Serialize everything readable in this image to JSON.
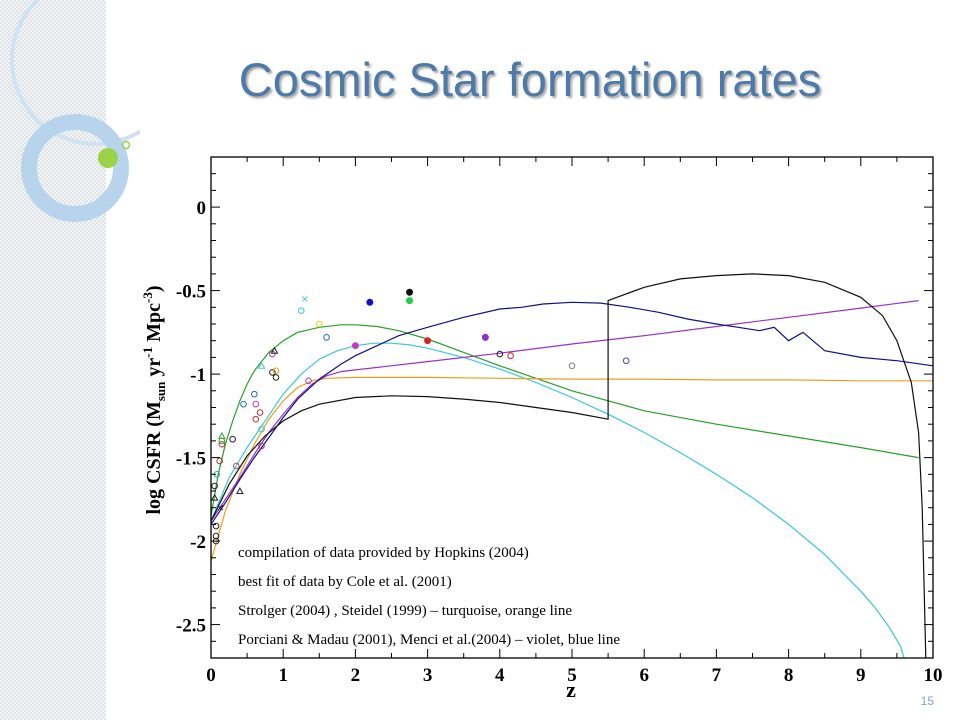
{
  "title": "Cosmic Star formation rates",
  "page_number": "15",
  "colors": {
    "title": "#4d7aa8",
    "deco_ring": "#b8d4ec",
    "deco_dot": "#9ad24a"
  },
  "chart_data": {
    "type": "line",
    "xlabel": "z",
    "ylabel": "log CSFR (M_sun yr^-1 Mpc^-3)",
    "xlim": [
      0,
      10
    ],
    "ylim": [
      -2.7,
      0.3
    ],
    "x_ticks": [
      "0",
      "1",
      "2",
      "3",
      "4",
      "5",
      "6",
      "7",
      "8",
      "9",
      "10"
    ],
    "y_ticks": [
      "0",
      "-0.5",
      "-1",
      "-1.5",
      "-2",
      "-2.5"
    ],
    "grid": false,
    "legend_lines": [
      "compilation of data provided by Hopkins (2004)",
      "best fit of data by Cole et al. (2001)",
      "Strolger (2004) , Steidel (1999) – turquoise, orange line",
      "Porciani & Madau (2001), Menci et al.(2004) – violet, blue line"
    ],
    "series": [
      {
        "color": "#28a028",
        "style": "line",
        "x": [
          0.0,
          0.1,
          0.2,
          0.3,
          0.4,
          0.5,
          0.6,
          0.8,
          1.0,
          1.2,
          1.5,
          1.8,
          2.0,
          2.3,
          2.6,
          3.0,
          3.5,
          4.0,
          5.0,
          6.0,
          7.0,
          8.0,
          9.0,
          9.8
        ],
        "y": [
          -1.85,
          -1.6,
          -1.42,
          -1.28,
          -1.16,
          -1.06,
          -0.98,
          -0.87,
          -0.8,
          -0.75,
          -0.72,
          -0.705,
          -0.705,
          -0.715,
          -0.74,
          -0.79,
          -0.87,
          -0.95,
          -1.1,
          -1.22,
          -1.3,
          -1.37,
          -1.44,
          -1.5
        ]
      },
      {
        "color": "#3cc8d8",
        "style": "line",
        "x": [
          0.0,
          0.25,
          0.5,
          0.75,
          1.0,
          1.25,
          1.5,
          1.75,
          2.0,
          2.25,
          2.5,
          2.75,
          3.0,
          3.5,
          4.0,
          4.5,
          5.0,
          5.5,
          6.0,
          6.5,
          7.0,
          7.5,
          8.0,
          8.5,
          9.0,
          9.2,
          9.4,
          9.55,
          9.6
        ],
        "y": [
          -1.88,
          -1.62,
          -1.44,
          -1.28,
          -1.12,
          -1.0,
          -0.91,
          -0.86,
          -0.83,
          -0.815,
          -0.815,
          -0.825,
          -0.845,
          -0.9,
          -0.97,
          -1.05,
          -1.14,
          -1.24,
          -1.35,
          -1.47,
          -1.6,
          -1.74,
          -1.9,
          -2.08,
          -2.3,
          -2.4,
          -2.52,
          -2.63,
          -2.7
        ]
      },
      {
        "color": "#e8a020",
        "style": "line",
        "x": [
          0.0,
          0.2,
          0.4,
          0.6,
          0.8,
          1.0,
          1.2,
          1.4,
          1.6,
          2.0,
          3.0,
          4.0,
          5.0,
          6.0,
          7.0,
          8.0,
          9.0,
          10.0
        ],
        "y": [
          -2.12,
          -1.82,
          -1.6,
          -1.42,
          -1.27,
          -1.16,
          -1.08,
          -1.04,
          -1.025,
          -1.02,
          -1.02,
          -1.025,
          -1.03,
          -1.03,
          -1.035,
          -1.035,
          -1.04,
          -1.04
        ]
      },
      {
        "color": "#9a30c8",
        "style": "line",
        "x": [
          0.0,
          0.2,
          0.4,
          0.6,
          0.8,
          1.0,
          1.2,
          1.4,
          1.6,
          1.8,
          2.0,
          3.0,
          4.0,
          5.0,
          6.0,
          7.0,
          8.0,
          9.0,
          9.8
        ],
        "y": [
          -1.88,
          -1.75,
          -1.62,
          -1.48,
          -1.35,
          -1.24,
          -1.14,
          -1.06,
          -1.01,
          -0.985,
          -0.975,
          -0.925,
          -0.875,
          -0.82,
          -0.77,
          -0.715,
          -0.66,
          -0.605,
          -0.56
        ]
      },
      {
        "color": "#101088",
        "style": "line",
        "x": [
          0.0,
          0.2,
          0.4,
          0.6,
          0.8,
          1.0,
          1.2,
          1.5,
          1.8,
          2.0,
          2.3,
          2.6,
          3.0,
          3.5,
          4.0,
          4.3,
          4.6,
          5.0,
          5.4,
          5.8,
          6.2,
          6.6,
          7.0,
          7.3,
          7.6,
          7.8,
          8.0,
          8.2,
          8.5,
          9.0,
          9.5,
          10.0
        ],
        "y": [
          -1.9,
          -1.77,
          -1.63,
          -1.5,
          -1.38,
          -1.26,
          -1.15,
          -1.03,
          -0.94,
          -0.89,
          -0.83,
          -0.77,
          -0.72,
          -0.66,
          -0.61,
          -0.6,
          -0.58,
          -0.57,
          -0.575,
          -0.6,
          -0.63,
          -0.67,
          -0.7,
          -0.72,
          -0.74,
          -0.72,
          -0.8,
          -0.75,
          -0.86,
          -0.9,
          -0.92,
          -0.95
        ]
      },
      {
        "color": "#101010",
        "style": "line",
        "x": [
          0.0,
          0.25,
          0.5,
          0.75,
          1.0,
          1.25,
          1.5,
          2.0,
          2.5,
          3.0,
          3.5,
          4.0,
          4.5,
          5.0,
          5.5,
          5.5,
          6.0,
          6.5,
          7.0,
          7.5,
          8.0,
          8.5,
          9.0,
          9.3,
          9.5,
          9.7,
          9.8,
          9.85,
          9.9
        ],
        "y": [
          -1.88,
          -1.66,
          -1.49,
          -1.37,
          -1.28,
          -1.22,
          -1.18,
          -1.14,
          -1.13,
          -1.135,
          -1.15,
          -1.17,
          -1.2,
          -1.23,
          -1.27,
          -0.56,
          -0.48,
          -0.43,
          -0.41,
          -0.4,
          -0.41,
          -0.45,
          -0.54,
          -0.65,
          -0.8,
          -1.05,
          -1.35,
          -1.8,
          -2.7
        ]
      }
    ],
    "points": [
      {
        "x": 0.05,
        "y": -1.67,
        "color": "#202020",
        "marker": "open"
      },
      {
        "x": 0.05,
        "y": -1.74,
        "color": "#202020",
        "marker": "triangle"
      },
      {
        "x": 0.07,
        "y": -1.91,
        "color": "#202020",
        "marker": "open"
      },
      {
        "x": 0.07,
        "y": -1.97,
        "color": "#202020",
        "marker": "open"
      },
      {
        "x": 0.07,
        "y": -2.0,
        "color": "#202020",
        "marker": "open"
      },
      {
        "x": 0.08,
        "y": -1.6,
        "color": "#2aa8a8",
        "marker": "open"
      },
      {
        "x": 0.12,
        "y": -1.52,
        "color": "#c03030",
        "marker": "open"
      },
      {
        "x": 0.13,
        "y": -1.8,
        "color": "#202020",
        "marker": "cross"
      },
      {
        "x": 0.15,
        "y": -1.4,
        "color": "#30a030",
        "marker": "open"
      },
      {
        "x": 0.15,
        "y": -1.37,
        "color": "#30a030",
        "marker": "triangle"
      },
      {
        "x": 0.15,
        "y": -1.42,
        "color": "#c04040",
        "marker": "open"
      },
      {
        "x": 0.3,
        "y": -1.39,
        "color": "#202020",
        "marker": "open"
      },
      {
        "x": 0.35,
        "y": -1.55,
        "color": "#b05050",
        "marker": "open"
      },
      {
        "x": 0.4,
        "y": -1.7,
        "color": "#202020",
        "marker": "triangle"
      },
      {
        "x": 0.45,
        "y": -1.18,
        "color": "#2070b0",
        "marker": "open"
      },
      {
        "x": 0.6,
        "y": -1.12,
        "color": "#2070b0",
        "marker": "open"
      },
      {
        "x": 0.62,
        "y": -1.18,
        "color": "#b040b0",
        "marker": "open"
      },
      {
        "x": 0.62,
        "y": -1.27,
        "color": "#c03030",
        "marker": "open"
      },
      {
        "x": 0.68,
        "y": -1.23,
        "color": "#c03030",
        "marker": "open"
      },
      {
        "x": 0.7,
        "y": -1.33,
        "color": "#3cc8d8",
        "marker": "open"
      },
      {
        "x": 0.7,
        "y": -1.43,
        "color": "#a03060",
        "marker": "open"
      },
      {
        "x": 0.7,
        "y": -0.95,
        "color": "#3cc8d8",
        "marker": "triangle"
      },
      {
        "x": 0.85,
        "y": -0.88,
        "color": "#b040b0",
        "marker": "open"
      },
      {
        "x": 0.85,
        "y": -0.99,
        "color": "#202020",
        "marker": "open"
      },
      {
        "x": 0.88,
        "y": -0.86,
        "color": "#202020",
        "marker": "triangle"
      },
      {
        "x": 0.9,
        "y": -0.98,
        "color": "#e8a020",
        "marker": "open"
      },
      {
        "x": 0.9,
        "y": -1.02,
        "color": "#202020",
        "marker": "open"
      },
      {
        "x": 1.25,
        "y": -0.62,
        "color": "#3cc8d8",
        "marker": "open"
      },
      {
        "x": 1.3,
        "y": -0.55,
        "color": "#3cc8d8",
        "marker": "cross"
      },
      {
        "x": 1.35,
        "y": -1.04,
        "color": "#b040b0",
        "marker": "open"
      },
      {
        "x": 1.5,
        "y": -0.7,
        "color": "#e8d020",
        "marker": "open"
      },
      {
        "x": 1.6,
        "y": -0.78,
        "color": "#2070b0",
        "marker": "open"
      },
      {
        "x": 2.0,
        "y": -0.83,
        "color": "#c040c0",
        "marker": "filled"
      },
      {
        "x": 2.2,
        "y": -0.57,
        "color": "#1010d0",
        "marker": "filled"
      },
      {
        "x": 2.75,
        "y": -0.51,
        "color": "#101010",
        "marker": "filled"
      },
      {
        "x": 2.75,
        "y": -0.56,
        "color": "#20d040",
        "marker": "filled"
      },
      {
        "x": 3.0,
        "y": -0.8,
        "color": "#e02020",
        "marker": "filled"
      },
      {
        "x": 3.8,
        "y": -0.78,
        "color": "#9030c0",
        "marker": "filled"
      },
      {
        "x": 4.0,
        "y": -0.88,
        "color": "#202020",
        "marker": "open"
      },
      {
        "x": 4.15,
        "y": -0.89,
        "color": "#e02020",
        "marker": "open"
      },
      {
        "x": 5.0,
        "y": -0.95,
        "color": "#808080",
        "marker": "open"
      },
      {
        "x": 5.75,
        "y": -0.92,
        "color": "#6040a0",
        "marker": "open"
      }
    ]
  }
}
